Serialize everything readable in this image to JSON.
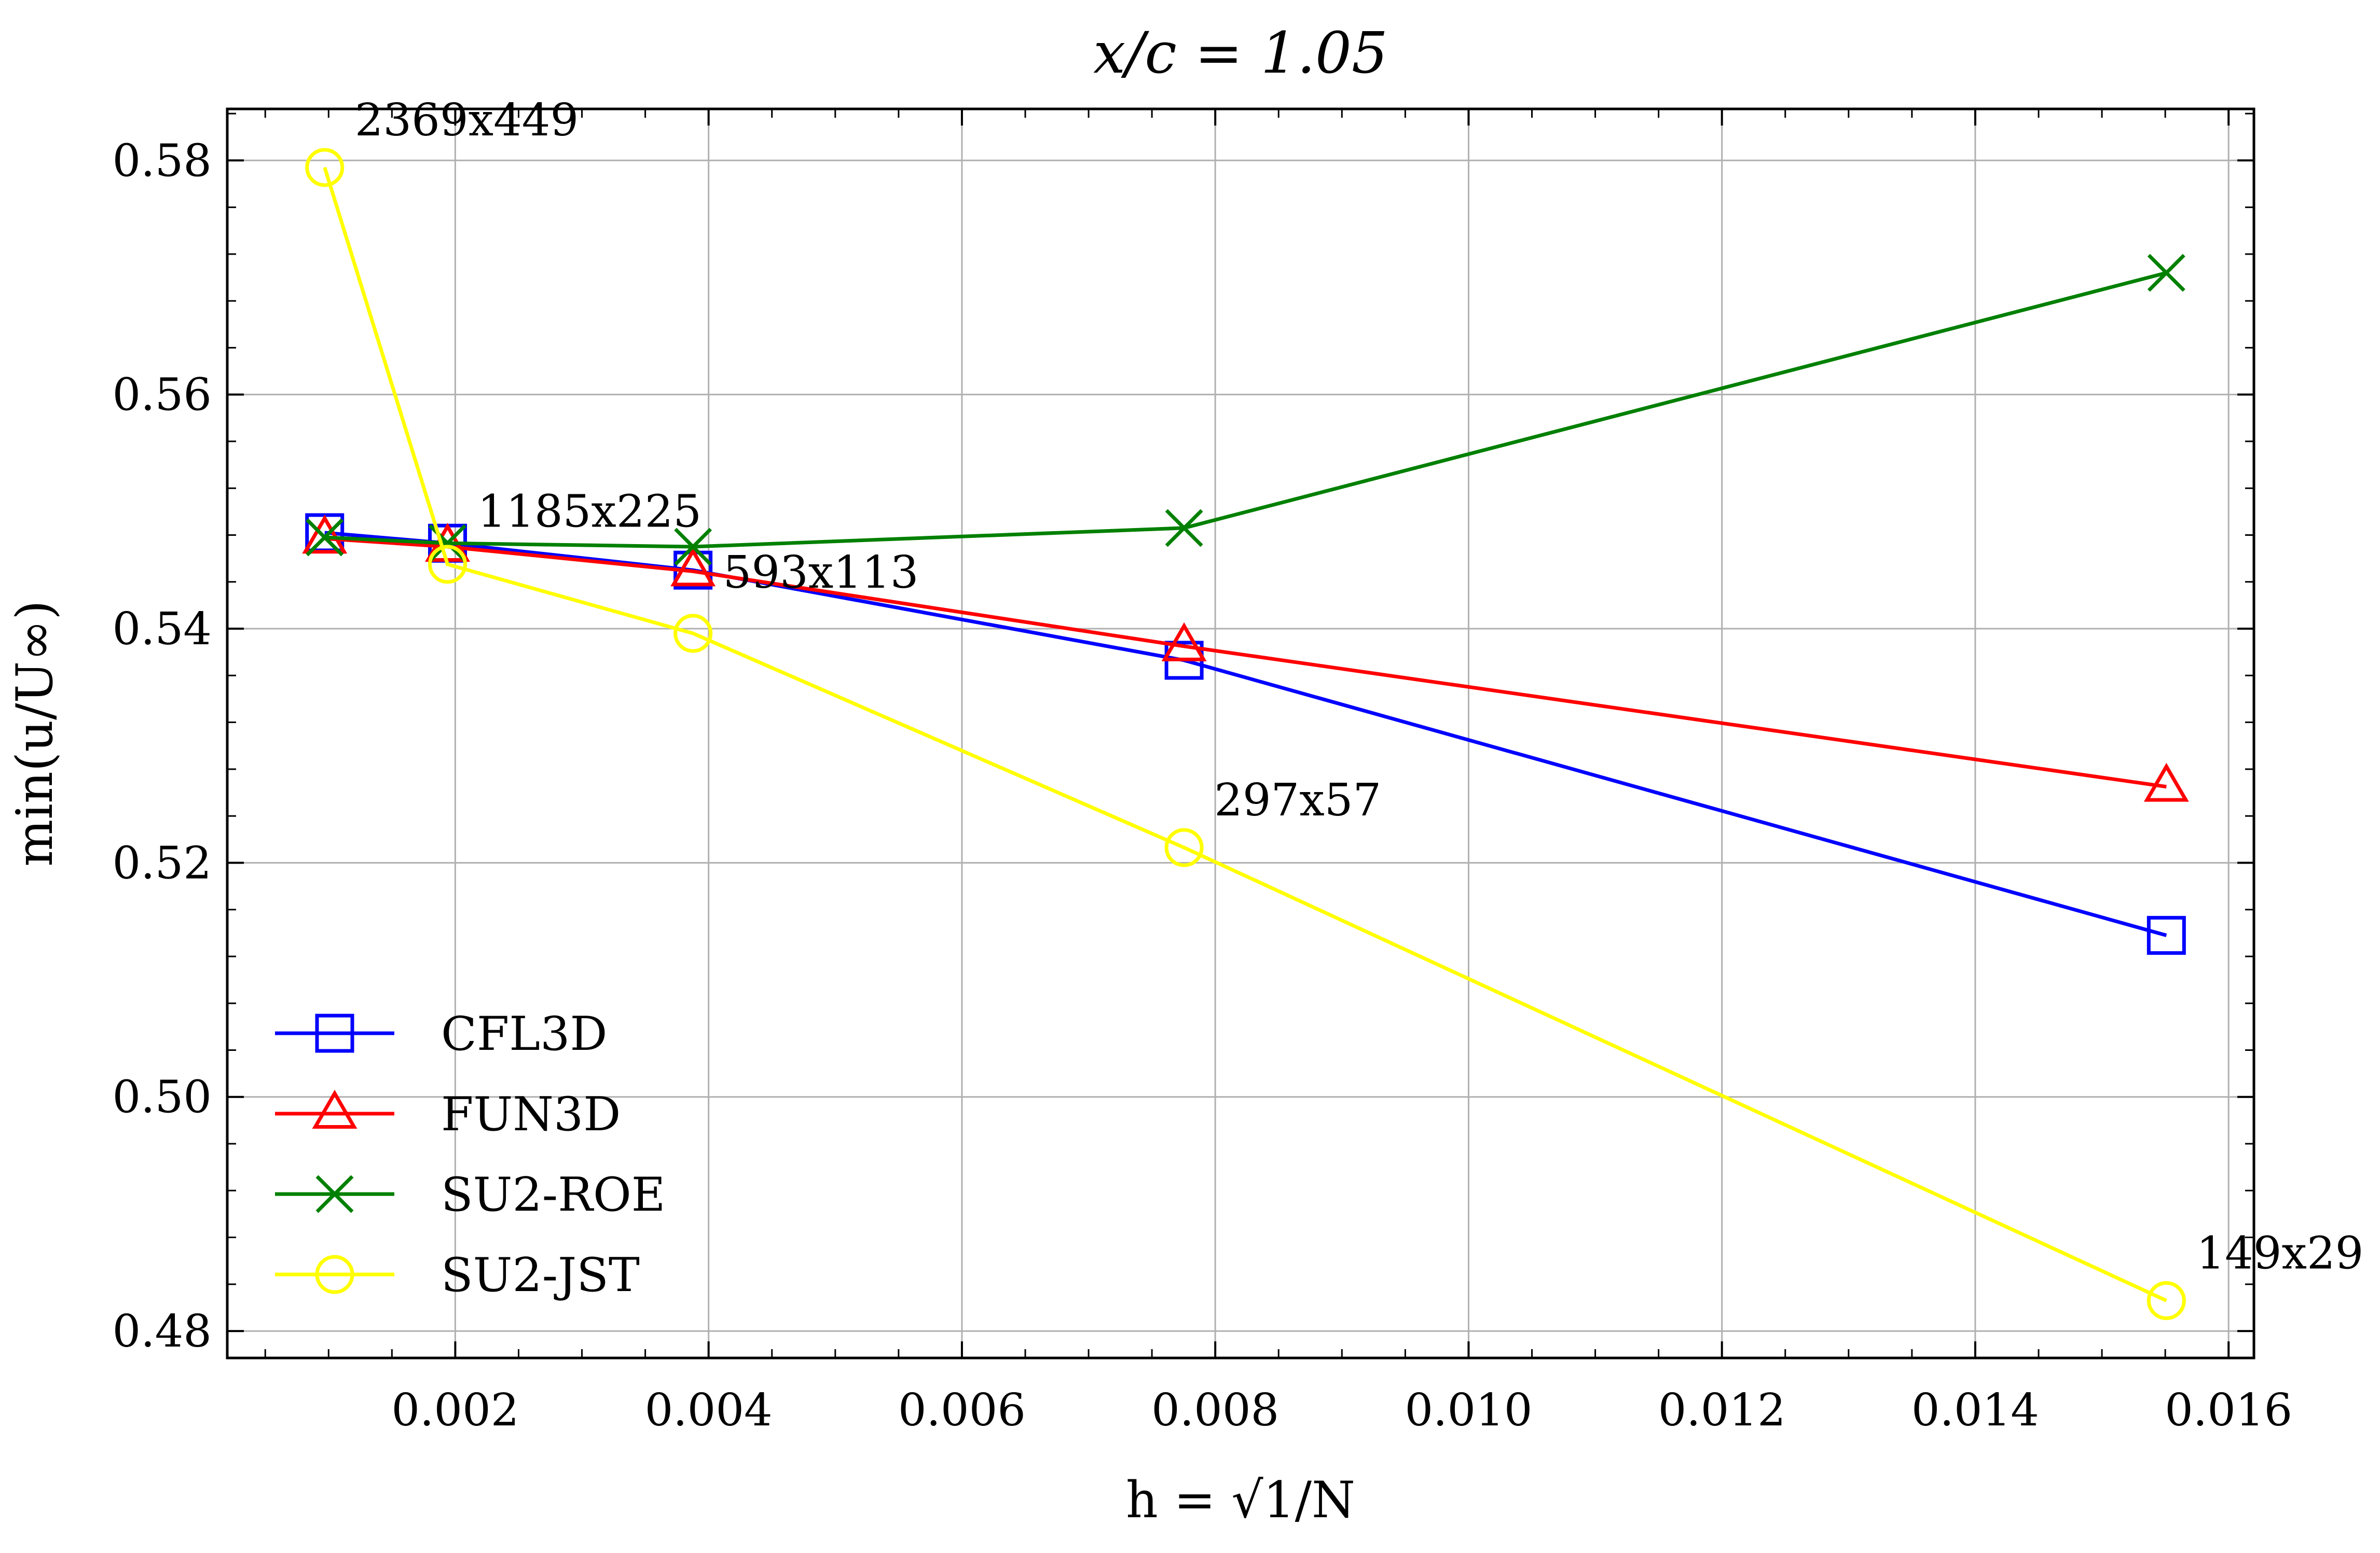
{
  "chart_data": {
    "type": "line",
    "title": "x/c = 1.05",
    "xlabel": "h = √1/N",
    "ylabel": "min(u/U∞)",
    "xlim": [
      0.0002,
      0.0162
    ],
    "ylim": [
      0.4777,
      0.5844
    ],
    "xticks": [
      0.002,
      0.004,
      0.006,
      0.008,
      0.01,
      0.012,
      0.014,
      0.016
    ],
    "xtick_labels": [
      "0.002",
      "0.004",
      "0.006",
      "0.008",
      "0.010",
      "0.012",
      "0.014",
      "0.016"
    ],
    "yticks": [
      0.48,
      0.5,
      0.52,
      0.54,
      0.56,
      0.58
    ],
    "ytick_labels": [
      "0.48",
      "0.50",
      "0.52",
      "0.54",
      "0.56",
      "0.58"
    ],
    "grid": true,
    "legend_position": "lower-left",
    "x": [
      0.000969,
      0.001939,
      0.003877,
      0.007754,
      0.015509
    ],
    "series": [
      {
        "name": "CFL3D",
        "color": "#0000ff",
        "marker": "square",
        "values": [
          0.5482,
          0.5473,
          0.545,
          0.5373,
          0.5138
        ]
      },
      {
        "name": "FUN3D",
        "color": "#ff0000",
        "marker": "triangle",
        "values": [
          0.5477,
          0.547,
          0.5449,
          0.5385,
          0.5265
        ]
      },
      {
        "name": "SU2-ROE",
        "color": "#008000",
        "marker": "x",
        "values": [
          0.5478,
          0.5473,
          0.547,
          0.5486,
          0.5704
        ]
      },
      {
        "name": "SU2-JST",
        "color": "#ffff00",
        "marker": "circle",
        "values": [
          0.5794,
          0.5455,
          0.5396,
          0.5213,
          0.4826
        ]
      }
    ],
    "annotations": [
      {
        "text": "2369x449",
        "x": 0.000969,
        "y": 0.5794
      },
      {
        "text": "1185x225",
        "x": 0.001939,
        "y": 0.5473
      },
      {
        "text": "593x113",
        "x": 0.003877,
        "y": 0.545
      },
      {
        "text": "297x57",
        "x": 0.007754,
        "y": 0.5213
      },
      {
        "text": "149x29",
        "x": 0.015509,
        "y": 0.4826
      }
    ]
  }
}
